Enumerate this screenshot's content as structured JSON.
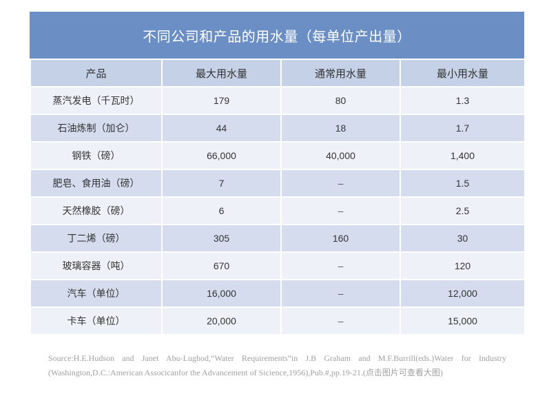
{
  "title": "不同公司和产品的用水量（每单位产出量）",
  "headers": [
    "产品",
    "最大用水量",
    "通常用水量",
    "最小用水量"
  ],
  "rows": [
    [
      "蒸汽发电（千瓦时）",
      "179",
      "80",
      "1.3"
    ],
    [
      "石油炼制（加仑）",
      "44",
      "18",
      "1.7"
    ],
    [
      "钢铁（磅）",
      "66,000",
      "40,000",
      "1,400"
    ],
    [
      "肥皂、食用油（磅）",
      "7",
      "–",
      "1.5"
    ],
    [
      "天然橡胶（磅）",
      "6",
      "–",
      "2.5"
    ],
    [
      "丁二烯（磅）",
      "305",
      "160",
      "30"
    ],
    [
      "玻璃容器（吨）",
      "670",
      "–",
      "120"
    ],
    [
      "汽车（单位）",
      "16,000",
      "–",
      "12,000"
    ],
    [
      "卡车（单位）",
      "20,000",
      "–",
      "15,000"
    ]
  ],
  "source": {
    "line1": "Source:H.E.Hudson and Janet Abu-Lughod,“Water Requirements”in J.B Graham and M.F.Burrill(eds.)Water for Industry",
    "line2": "(Washington,D.C.:American Associcanfor the Advancement of Sicience,1956),Pub.#,pp.19-21.(点击图片可查看大图)"
  },
  "colors": {
    "title_bg": "#6b8fc5",
    "header_bg": "#c5d1e6",
    "row_light": "#eef1f7",
    "row_dark": "#d4dced"
  }
}
